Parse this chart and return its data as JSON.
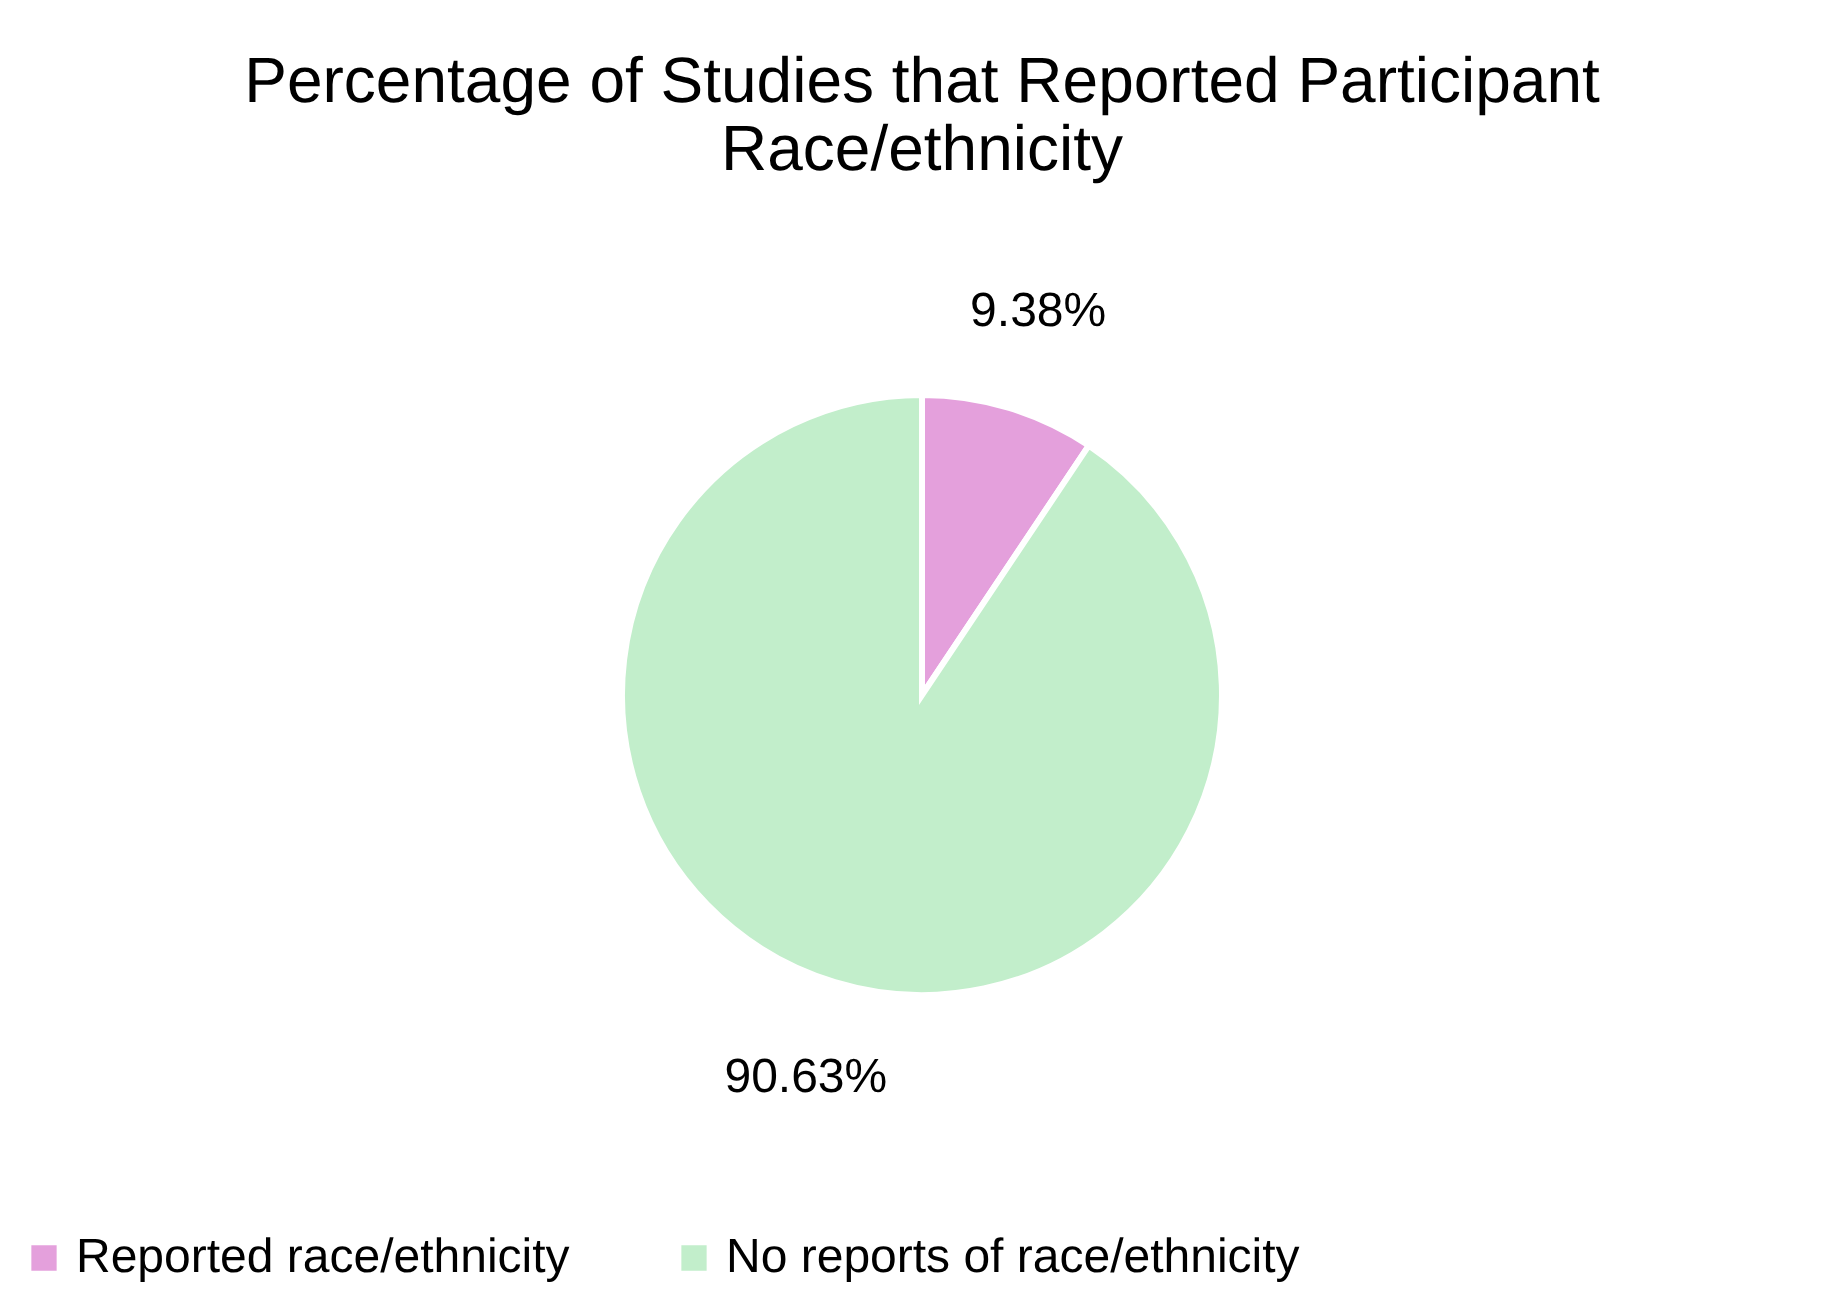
{
  "chart_data": {
    "type": "pie",
    "title": "Percentage of Studies that Reported Participant Race/ethnicity",
    "categories": [
      "Reported race/ethnicity",
      "No reports of race/ethnicity"
    ],
    "values": [
      9.38,
      90.63
    ],
    "colors": [
      "#e4a0dc",
      "#c2eecb"
    ],
    "value_labels": [
      "9.38%",
      "90.63%"
    ],
    "legend": "bottom"
  }
}
